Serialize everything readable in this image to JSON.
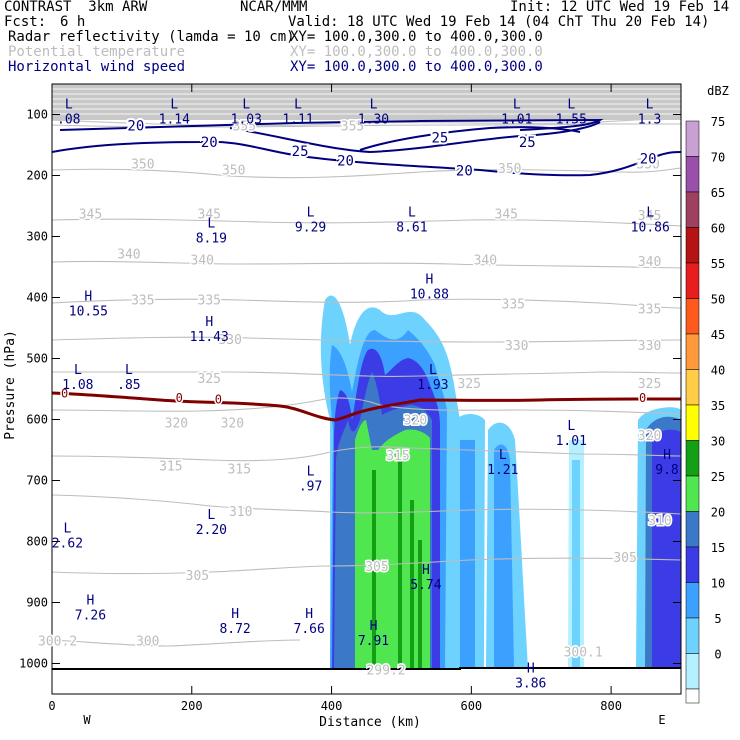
{
  "header": {
    "title": "CONTRAST  3km ARW",
    "center": "NCAR/MMM",
    "init": "Init: 12 UTC Wed 19 Feb 14",
    "fcst_label": "Fcst:",
    "fcst_value": "6 h",
    "valid": "Valid: 18 UTC Wed 19 Feb 14 (04 ChT Thu 20 Feb 14)",
    "line1_name": "Radar reflectivity (lamda = 10 cm)",
    "line1_xy": "XY= 100.0,300.0 to 400.0,300.0",
    "line2_name": "Potential temperature",
    "line2_xy": "XY= 100.0,300.0 to 400.0,300.0",
    "line3_name": "Horizontal wind speed",
    "line3_xy": "XY= 100.0,300.0 to 400.0,300.0"
  },
  "colors": {
    "theta": "#bdbdbd",
    "wind": "#000080",
    "freezing": "#800000",
    "ground": "#000000"
  },
  "chart_data": {
    "type": "cross-section",
    "xlabel": "Distance (km)",
    "ylabel": "Pressure (hPa)",
    "xlim": [
      0,
      900
    ],
    "ylim": [
      1050,
      50
    ],
    "xticks": [
      0,
      200,
      400,
      600,
      800
    ],
    "yticks": [
      100,
      200,
      300,
      400,
      500,
      600,
      700,
      800,
      900,
      1000
    ],
    "west_label": "W",
    "east_label": "E",
    "reflectivity_unit": "dBZ",
    "reflectivity_scale": [
      {
        "level": "75",
        "color": "#c8a0d2"
      },
      {
        "level": "70",
        "color": "#9a50aa"
      },
      {
        "level": "65",
        "color": "#a04060"
      },
      {
        "level": "60",
        "color": "#b41414"
      },
      {
        "level": "55",
        "color": "#e61e1e"
      },
      {
        "level": "50",
        "color": "#ff5a1e"
      },
      {
        "level": "45",
        "color": "#ff9a3c"
      },
      {
        "level": "40",
        "color": "#ffcd46"
      },
      {
        "level": "35",
        "color": "#ffff00"
      },
      {
        "level": "30",
        "color": "#14a014"
      },
      {
        "level": "25",
        "color": "#50e650"
      },
      {
        "level": "20",
        "color": "#3c78c8"
      },
      {
        "level": "15",
        "color": "#3c3ce6"
      },
      {
        "level": "10",
        "color": "#3ca0ff"
      },
      {
        "level": "5",
        "color": "#6ed2ff"
      },
      {
        "level": "0",
        "color": "#b4f0ff"
      }
    ],
    "wind_contours": [
      {
        "label": "20",
        "x": 120,
        "p": 118
      },
      {
        "label": "20",
        "x": 225,
        "p": 145
      },
      {
        "label": "25",
        "x": 355,
        "p": 160
      },
      {
        "label": "20",
        "x": 420,
        "p": 175
      },
      {
        "label": "25",
        "x": 555,
        "p": 138
      },
      {
        "label": "25",
        "x": 680,
        "p": 145
      },
      {
        "label": "20",
        "x": 590,
        "p": 192
      },
      {
        "label": "20",
        "x": 853,
        "p": 172
      }
    ],
    "theta_labels": [
      {
        "label": "355",
        "x": 275,
        "p": 118
      },
      {
        "label": "355",
        "x": 430,
        "p": 118
      },
      {
        "label": "350",
        "x": 130,
        "p": 180
      },
      {
        "label": "350",
        "x": 260,
        "p": 190
      },
      {
        "label": "350",
        "x": 655,
        "p": 188
      },
      {
        "label": "350",
        "x": 853,
        "p": 180
      },
      {
        "label": "345",
        "x": 55,
        "p": 262
      },
      {
        "label": "345",
        "x": 225,
        "p": 262
      },
      {
        "label": "345",
        "x": 650,
        "p": 262
      },
      {
        "label": "345",
        "x": 855,
        "p": 265
      },
      {
        "label": "340",
        "x": 110,
        "p": 328
      },
      {
        "label": "340",
        "x": 215,
        "p": 338
      },
      {
        "label": "340",
        "x": 620,
        "p": 338
      },
      {
        "label": "340",
        "x": 855,
        "p": 340
      },
      {
        "label": "335",
        "x": 130,
        "p": 403
      },
      {
        "label": "335",
        "x": 225,
        "p": 403
      },
      {
        "label": "335",
        "x": 660,
        "p": 410
      },
      {
        "label": "335",
        "x": 855,
        "p": 418
      },
      {
        "label": "330",
        "x": 255,
        "p": 468
      },
      {
        "label": "330",
        "x": 665,
        "p": 478
      },
      {
        "label": "330",
        "x": 855,
        "p": 478
      },
      {
        "label": "325",
        "x": 225,
        "p": 532
      },
      {
        "label": "325",
        "x": 597,
        "p": 540
      },
      {
        "label": "325",
        "x": 855,
        "p": 540
      },
      {
        "label": "320",
        "x": 178,
        "p": 605
      },
      {
        "label": "320",
        "x": 258,
        "p": 605
      },
      {
        "label": "320",
        "x": 520,
        "p": 600
      },
      {
        "label": "320",
        "x": 855,
        "p": 625
      },
      {
        "label": "315",
        "x": 170,
        "p": 675
      },
      {
        "label": "315",
        "x": 268,
        "p": 680
      },
      {
        "label": "315",
        "x": 495,
        "p": 658
      },
      {
        "label": "310",
        "x": 270,
        "p": 750
      },
      {
        "label": "310",
        "x": 870,
        "p": 765
      },
      {
        "label": "305",
        "x": 208,
        "p": 855
      },
      {
        "label": "305",
        "x": 465,
        "p": 840
      },
      {
        "label": "305",
        "x": 820,
        "p": 825
      },
      {
        "label": "300.2",
        "x": 8,
        "p": 962
      },
      {
        "label": "300",
        "x": 137,
        "p": 962
      },
      {
        "label": "299.2",
        "x": 478,
        "p": 1010
      },
      {
        "label": "300.1",
        "x": 760,
        "p": 980
      }
    ],
    "freezing_label": "0",
    "freezing_marks": [
      {
        "x": 18,
        "p": 557
      },
      {
        "x": 182,
        "p": 565
      },
      {
        "x": 238,
        "p": 567
      },
      {
        "x": 845,
        "p": 565
      }
    ],
    "extrema": [
      {
        "kind": "L",
        "value": ".08",
        "x": 24,
        "p": 95
      },
      {
        "kind": "L",
        "value": "1.14",
        "x": 175,
        "p": 95
      },
      {
        "kind": "L",
        "value": "1.03",
        "x": 278,
        "p": 95
      },
      {
        "kind": "L",
        "value": "1.11",
        "x": 352,
        "p": 95
      },
      {
        "kind": "L",
        "value": "1.30",
        "x": 460,
        "p": 95
      },
      {
        "kind": "L",
        "value": "1.01",
        "x": 665,
        "p": 95
      },
      {
        "kind": "L",
        "value": "1.55",
        "x": 743,
        "p": 95
      },
      {
        "kind": "L",
        "value": "1.3",
        "x": 855,
        "p": 95
      },
      {
        "kind": "L",
        "value": "8.19",
        "x": 228,
        "p": 290
      },
      {
        "kind": "L",
        "value": "9.29",
        "x": 370,
        "p": 272
      },
      {
        "kind": "L",
        "value": "8.61",
        "x": 515,
        "p": 272
      },
      {
        "kind": "L",
        "value": "10.86",
        "x": 856,
        "p": 272
      },
      {
        "kind": "H",
        "value": "10.55",
        "x": 52,
        "p": 410
      },
      {
        "kind": "H",
        "value": "11.43",
        "x": 225,
        "p": 452
      },
      {
        "kind": "H",
        "value": "10.88",
        "x": 540,
        "p": 382
      },
      {
        "kind": "L",
        "value": "1.08",
        "x": 37,
        "p": 530
      },
      {
        "kind": "L",
        "value": ".85",
        "x": 110,
        "p": 530
      },
      {
        "kind": "L",
        "value": "1.93",
        "x": 545,
        "p": 530
      },
      {
        "kind": "L",
        "value": "1.01",
        "x": 743,
        "p": 622
      },
      {
        "kind": "L",
        "value": "1.21",
        "x": 645,
        "p": 670
      },
      {
        "kind": "H",
        "value": "9.8",
        "x": 880,
        "p": 670
      },
      {
        "kind": "L",
        "value": ".97",
        "x": 370,
        "p": 697
      },
      {
        "kind": "L",
        "value": "2.20",
        "x": 228,
        "p": 768
      },
      {
        "kind": "L",
        "value": "2.62",
        "x": 22,
        "p": 790
      },
      {
        "kind": "H",
        "value": "5.74",
        "x": 535,
        "p": 858
      },
      {
        "kind": "H",
        "value": "7.26",
        "x": 55,
        "p": 908
      },
      {
        "kind": "H",
        "value": "8.72",
        "x": 262,
        "p": 930
      },
      {
        "kind": "H",
        "value": "7.66",
        "x": 368,
        "p": 930
      },
      {
        "kind": "H",
        "value": "7.91",
        "x": 460,
        "p": 950
      },
      {
        "kind": "H",
        "value": "3.86",
        "x": 685,
        "p": 1020
      }
    ]
  }
}
